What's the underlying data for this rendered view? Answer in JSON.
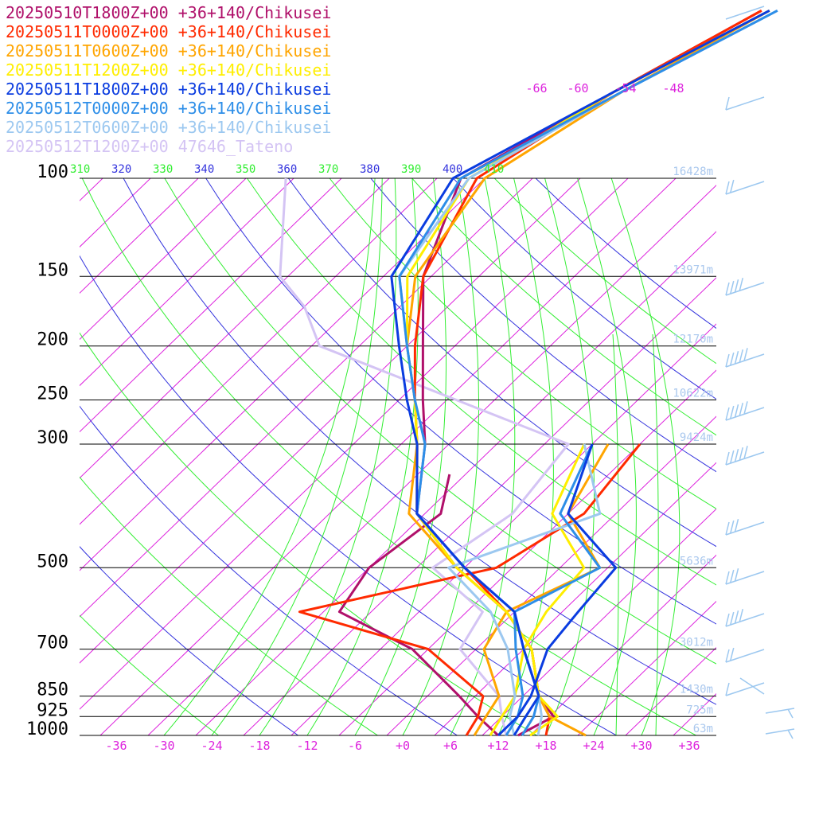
{
  "chart_data": {
    "type": "line",
    "title": "",
    "xlabel": "",
    "ylabel": "",
    "legend_placement": "top-left",
    "pressure_levels": [
      100,
      150,
      200,
      250,
      300,
      500,
      700,
      850,
      925,
      1000
    ],
    "temperature_ticks": [
      "-36",
      "-30",
      "-24",
      "-18",
      "-12",
      "-6",
      "+0",
      "+6",
      "+12",
      "+18",
      "+24",
      "+30",
      "+36"
    ],
    "isotherm_top_labels": [
      "-66",
      "-60",
      "-54",
      "-48"
    ],
    "theta_labels": [
      "310",
      "320",
      "330",
      "340",
      "350",
      "360",
      "370",
      "380",
      "390",
      "400",
      "410"
    ],
    "heights": [
      {
        "p": 100,
        "label": "16428m"
      },
      {
        "p": 150,
        "label": "13971m"
      },
      {
        "p": 200,
        "label": "12170m"
      },
      {
        "p": 250,
        "label": "10622m"
      },
      {
        "p": 300,
        "label": "9424m"
      },
      {
        "p": 500,
        "label": "5636m"
      },
      {
        "p": 700,
        "label": "3012m"
      },
      {
        "p": 850,
        "label": "1430m"
      },
      {
        "p": 925,
        "label": "725m"
      },
      {
        "p": 1000,
        "label": "63m"
      }
    ],
    "series": [
      {
        "name": "20250510T1800Z+00 +36+140/Chikusei",
        "color": "#b0106a",
        "temperature": [
          [
            1000,
            14.5
          ],
          [
            925,
            16.5
          ],
          [
            850,
            12
          ],
          [
            700,
            5
          ],
          [
            600,
            -3
          ],
          [
            500,
            -15
          ],
          [
            400,
            -27
          ],
          [
            300,
            -35
          ],
          [
            250,
            -41
          ],
          [
            200,
            -48
          ],
          [
            150,
            -57
          ],
          [
            100,
            -65
          ],
          [
            70,
            -57
          ],
          [
            50,
            -49
          ]
        ],
        "dewpoint": [
          [
            1000,
            12
          ],
          [
            925,
            7
          ],
          [
            850,
            2
          ],
          [
            700,
            -10
          ],
          [
            600,
            -24
          ],
          [
            500,
            -26
          ],
          [
            400,
            -24
          ],
          [
            340,
            -28
          ]
        ]
      },
      {
        "name": "20250511T0000Z+00 +36+140/Chikusei",
        "color": "#ff2a00",
        "temperature": [
          [
            1000,
            18
          ],
          [
            925,
            16
          ],
          [
            850,
            12
          ],
          [
            700,
            5
          ],
          [
            600,
            -3
          ],
          [
            500,
            -14
          ],
          [
            400,
            -27
          ],
          [
            300,
            -36
          ],
          [
            250,
            -42
          ],
          [
            200,
            -49
          ],
          [
            150,
            -57
          ],
          [
            100,
            -63
          ],
          [
            70,
            -57
          ],
          [
            50,
            -49
          ]
        ],
        "dewpoint": [
          [
            1000,
            8
          ],
          [
            925,
            7
          ],
          [
            850,
            5
          ],
          [
            700,
            -8
          ],
          [
            600,
            -29
          ],
          [
            500,
            -10
          ],
          [
            400,
            -6
          ],
          [
            300,
            -8
          ]
        ]
      },
      {
        "name": "20250511T0600Z+00 +36+140/Chikusei",
        "color": "#ffa500",
        "temperature": [
          [
            1000,
            23
          ],
          [
            925,
            16
          ],
          [
            850,
            12
          ],
          [
            700,
            5
          ],
          [
            600,
            -3
          ],
          [
            500,
            -15
          ],
          [
            400,
            -28
          ],
          [
            300,
            -36
          ],
          [
            250,
            -42
          ],
          [
            200,
            -50
          ],
          [
            150,
            -58
          ],
          [
            100,
            -62
          ],
          [
            70,
            -56
          ],
          [
            50,
            -48
          ]
        ],
        "dewpoint": [
          [
            1000,
            9
          ],
          [
            925,
            8
          ],
          [
            850,
            7
          ],
          [
            700,
            -1
          ],
          [
            600,
            -3
          ],
          [
            500,
            3
          ],
          [
            400,
            -8
          ],
          [
            300,
            -12
          ]
        ]
      },
      {
        "name": "20250511T1200Z+00 +36+140/Chikusei",
        "color": "#ffee00",
        "temperature": [
          [
            1000,
            16
          ],
          [
            925,
            17
          ],
          [
            850,
            12
          ],
          [
            700,
            5
          ],
          [
            600,
            -3
          ],
          [
            500,
            -15
          ],
          [
            400,
            -27
          ],
          [
            300,
            -36
          ],
          [
            250,
            -42
          ],
          [
            200,
            -50
          ],
          [
            150,
            -59
          ],
          [
            100,
            -64
          ],
          [
            70,
            -57
          ],
          [
            50,
            -48
          ]
        ],
        "dewpoint": [
          [
            1000,
            11
          ],
          [
            925,
            10
          ],
          [
            850,
            9
          ],
          [
            700,
            4
          ],
          [
            600,
            2
          ],
          [
            500,
            1
          ],
          [
            400,
            -10
          ],
          [
            300,
            -15
          ]
        ]
      },
      {
        "name": "20250511T1800Z+00 +36+140/Chikusei",
        "color": "#0a3ce0",
        "temperature": [
          [
            1000,
            14
          ],
          [
            925,
            13
          ],
          [
            850,
            12
          ],
          [
            700,
            4
          ],
          [
            600,
            -2
          ],
          [
            500,
            -14
          ],
          [
            400,
            -27
          ],
          [
            300,
            -36
          ],
          [
            250,
            -43
          ],
          [
            200,
            -51
          ],
          [
            150,
            -61
          ],
          [
            100,
            -66
          ],
          [
            70,
            -57
          ],
          [
            50,
            -48
          ]
        ],
        "dewpoint": [
          [
            1000,
            12
          ],
          [
            925,
            12
          ],
          [
            850,
            11
          ],
          [
            700,
            7
          ],
          [
            600,
            6
          ],
          [
            500,
            5
          ],
          [
            400,
            -8
          ],
          [
            300,
            -14
          ]
        ]
      },
      {
        "name": "20250512T0000Z+00 +36+140/Chikusei",
        "color": "#2d8ee8",
        "temperature": [
          [
            1000,
            15
          ],
          [
            925,
            14
          ],
          [
            850,
            12
          ],
          [
            700,
            4
          ],
          [
            600,
            -2
          ],
          [
            500,
            -14
          ],
          [
            400,
            -27
          ],
          [
            300,
            -35
          ],
          [
            250,
            -42
          ],
          [
            200,
            -50
          ],
          [
            150,
            -60
          ],
          [
            100,
            -65
          ],
          [
            70,
            -56
          ],
          [
            50,
            -47
          ]
        ],
        "dewpoint": [
          [
            1000,
            13
          ],
          [
            925,
            12
          ],
          [
            850,
            10
          ],
          [
            700,
            3
          ],
          [
            600,
            -2
          ],
          [
            500,
            3
          ],
          [
            400,
            -9
          ],
          [
            300,
            -14
          ]
        ]
      },
      {
        "name": "20250512T0600Z+00 +36+140/Chikusei",
        "color": "#9cc8f0",
        "temperature": [
          [
            1000,
            17
          ],
          [
            925,
            15
          ],
          [
            850,
            12
          ],
          [
            700,
            4
          ],
          [
            600,
            -2
          ],
          [
            500,
            -14
          ],
          [
            400,
            -27
          ],
          [
            300,
            -35
          ],
          [
            250,
            -42
          ],
          [
            200,
            -50
          ],
          [
            150,
            -60
          ],
          [
            100,
            -64
          ],
          [
            70,
            -56
          ],
          [
            50,
            -47
          ]
        ],
        "dewpoint": [
          [
            1000,
            14
          ],
          [
            925,
            11
          ],
          [
            850,
            9
          ],
          [
            700,
            2
          ],
          [
            600,
            -5
          ],
          [
            500,
            -16
          ],
          [
            400,
            -4
          ],
          [
            300,
            -15
          ]
        ]
      },
      {
        "name": "20250512T1200Z+00 47646_Tateno",
        "color": "#d4c4f4",
        "temperature": [
          [
            1000,
            15
          ],
          [
            925,
            14
          ],
          [
            850,
            12
          ],
          [
            700,
            4
          ],
          [
            600,
            -2
          ],
          [
            500,
            -14
          ],
          [
            400,
            -27
          ],
          [
            300,
            -36
          ],
          [
            250,
            -42
          ],
          [
            200,
            -50
          ],
          [
            150,
            -60
          ],
          [
            100,
            -64
          ]
        ],
        "dewpoint": [
          [
            1000,
            13
          ],
          [
            925,
            10
          ],
          [
            850,
            7
          ],
          [
            700,
            -4
          ],
          [
            600,
            -6
          ],
          [
            500,
            -18
          ],
          [
            400,
            -15
          ],
          [
            300,
            -17
          ],
          [
            200,
            -61
          ],
          [
            170,
            -68
          ],
          [
            150,
            -75
          ],
          [
            100,
            -87
          ]
        ]
      }
    ]
  }
}
